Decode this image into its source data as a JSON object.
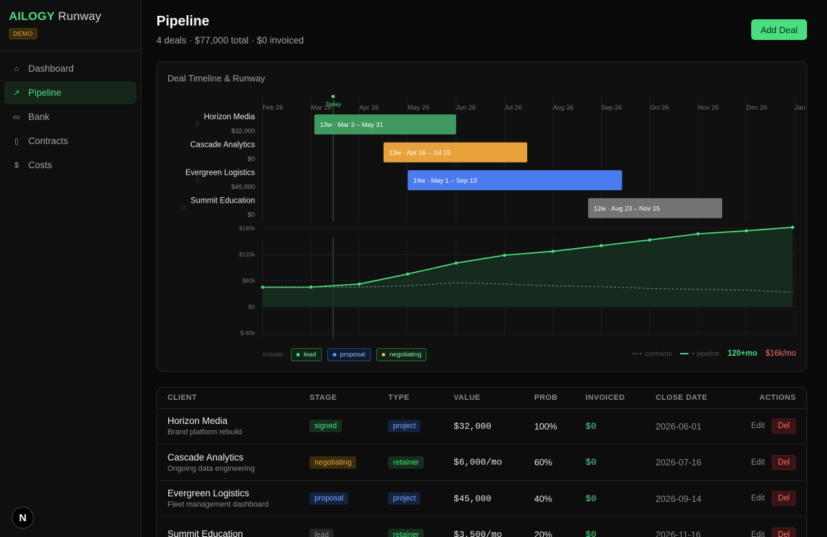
{
  "brand": {
    "name_a": "AILOGY",
    "name_b": " Runway",
    "badge": "DEMO"
  },
  "nav": [
    {
      "label": "Dashboard",
      "icon": "home-icon",
      "glyph": "⌂"
    },
    {
      "label": "Pipeline",
      "icon": "trend-icon",
      "glyph": "↗"
    },
    {
      "label": "Bank",
      "icon": "card-icon",
      "glyph": "▭"
    },
    {
      "label": "Contracts",
      "icon": "document-icon",
      "glyph": "▯"
    },
    {
      "label": "Costs",
      "icon": "dollar-icon",
      "glyph": "$"
    }
  ],
  "footer_logo": "N",
  "header": {
    "title": "Pipeline",
    "subtitle": "4 deals · $77,000 total · $0 invoiced",
    "add_button": "Add Deal"
  },
  "timeline": {
    "title": "Deal Timeline & Runway",
    "months": [
      "Feb 26",
      "Mar 26",
      "Apr 26",
      "May 26",
      "Jun 26",
      "Jul 26",
      "Aug 26",
      "Sep 26",
      "Oct 26",
      "Nov 26",
      "Dec 26",
      "Jan 27"
    ],
    "today_label": "Today",
    "today_month_index": 1.33,
    "deals": [
      {
        "client": "Horizon Media",
        "value": "$32,000",
        "bar_label": "13w · Mar 3 – May 31",
        "start": 1.07,
        "end": 4.0,
        "color": "#3f9a5f"
      },
      {
        "client": "Cascade Analytics",
        "value": "$0",
        "bar_label": "13w · Apr 16 – Jul 15",
        "start": 2.5,
        "end": 5.47,
        "color": "#e9a23b"
      },
      {
        "client": "Evergreen Logistics",
        "value": "$45,000",
        "bar_label": "19w · May 1 – Sep 13",
        "start": 3.0,
        "end": 7.43,
        "color": "#4a7cf0"
      },
      {
        "client": "Summit Education",
        "value": "$0",
        "bar_label": "12w · Aug 23 – Nov 15",
        "start": 6.73,
        "end": 9.5,
        "color": "#737373"
      }
    ],
    "include_label": "Include:",
    "include_chips": [
      {
        "label": "lead",
        "dot": "#4ade80"
      },
      {
        "label": "proposal",
        "dot": "#60a5fa"
      },
      {
        "label": "negotiating",
        "dot": "#fbbf24"
      }
    ],
    "legend_contracts": "contracts",
    "legend_pipeline": "+ pipeline",
    "runway_months": "120+mo",
    "burn_rate": "$16k/mo"
  },
  "chart_data": {
    "type": "area",
    "title": "Deal Timeline & Runway",
    "x": [
      "Feb 26",
      "Mar 26",
      "Apr 26",
      "May 26",
      "Jun 26",
      "Jul 26",
      "Aug 26",
      "Sep 26",
      "Oct 26",
      "Nov 26",
      "Dec 26",
      "Jan 27"
    ],
    "yticks": [
      "$180k",
      "$120k",
      "$60k",
      "$0",
      "$-60k"
    ],
    "ylim": [
      -60,
      180
    ],
    "series": [
      {
        "name": "+ pipeline",
        "values": [
          45,
          45,
          52,
          75,
          100,
          118,
          127,
          140,
          153,
          167,
          174,
          182
        ]
      },
      {
        "name": "contracts",
        "values": [
          45,
          45,
          45,
          48,
          55,
          52,
          48,
          46,
          42,
          40,
          38,
          33
        ]
      }
    ]
  },
  "table": {
    "headers": [
      "CLIENT",
      "STAGE",
      "TYPE",
      "VALUE",
      "PROB",
      "INVOICED",
      "CLOSE DATE",
      "ACTIONS"
    ],
    "edit_label": "Edit",
    "del_label": "Del",
    "rows": [
      {
        "client": "Horizon Media",
        "desc": "Brand platform rebuild",
        "stage": "signed",
        "type": "project",
        "value": "$32,000",
        "prob": "100%",
        "invoiced": "$0",
        "close": "2026-06-01"
      },
      {
        "client": "Cascade Analytics",
        "desc": "Ongoing data engineering",
        "stage": "negotiating",
        "type": "retainer",
        "value": "$6,000/mo",
        "prob": "60%",
        "invoiced": "$0",
        "close": "2026-07-16"
      },
      {
        "client": "Evergreen Logistics",
        "desc": "Fleet management dashboard",
        "stage": "proposal",
        "type": "project",
        "value": "$45,000",
        "prob": "40%",
        "invoiced": "$0",
        "close": "2026-09-14"
      },
      {
        "client": "Summit Education",
        "desc": "",
        "stage": "lead",
        "type": "retainer",
        "value": "$3,500/mo",
        "prob": "20%",
        "invoiced": "$0",
        "close": "2026-11-16"
      }
    ]
  }
}
